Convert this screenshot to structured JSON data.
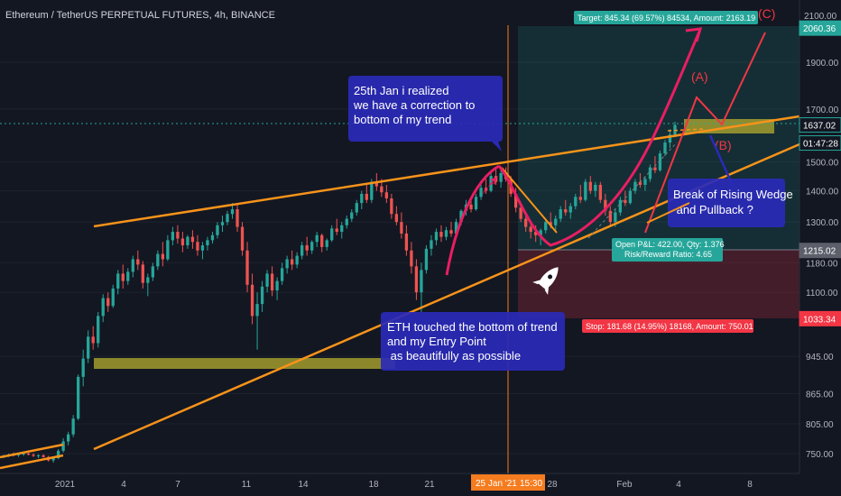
{
  "chart_data": {
    "type": "candlestick",
    "title": "Ethereum / TetherUS PERPETUAL FUTURES, 4h, BINANCE",
    "price_axis_ticks": [
      750,
      805,
      865,
      945,
      1100,
      1180,
      1300,
      1400,
      1500,
      1700,
      1900
    ],
    "date_axis_ticks": [
      "2021",
      "4",
      "7",
      "11",
      "14",
      "18",
      "21",
      "28",
      "Feb",
      "4",
      "8"
    ],
    "price_tags": [
      {
        "value": "2060.36",
        "color": "#26a69a"
      },
      {
        "value": "1637.02",
        "color": "#131722"
      },
      {
        "value": "01:47:28",
        "color": "#131722"
      },
      {
        "value": "1215.02",
        "color": "#5d606b"
      },
      {
        "value": "1033.34",
        "color": "#f23645"
      }
    ],
    "cursor_date": "25 Jan '21",
    "cursor_time": "15:30",
    "top_axis_partial": "2100.00",
    "position": {
      "entry": 1215.02,
      "target_price": 2060.36,
      "stop_price": 1033.34,
      "target_label": "Target: 845.34 (69.57%) 84534, Amount: 2163.19",
      "stop_label": "Stop: 181.68 (14.95%) 18168, Amount: 750.01",
      "pnl_line1": "Open P&L: 422.00, Qty: 1.376",
      "pnl_line2": "Risk/Reward Ratio: 4.65"
    },
    "wave_labels": {
      "a": "(A)",
      "b": "(B)",
      "c": "(C)"
    },
    "annotations": [
      {
        "lines": [
          "25th Jan i realized",
          "we have a correction to",
          "bottom of my trend"
        ]
      },
      {
        "lines": [
          "ETH touched the bottom of trend",
          "and my Entry Point",
          " as beautifully as possible"
        ]
      },
      {
        "lines": [
          "Break of Rising Wedge",
          "  and Pullback ?"
        ]
      }
    ],
    "candles": [
      [
        745,
        748,
        742,
        746
      ],
      [
        746,
        750,
        744,
        748
      ],
      [
        748,
        752,
        745,
        747
      ],
      [
        747,
        751,
        744,
        749
      ],
      [
        749,
        753,
        746,
        750
      ],
      [
        750,
        754,
        747,
        748
      ],
      [
        748,
        751,
        744,
        746
      ],
      [
        746,
        749,
        742,
        747
      ],
      [
        747,
        749,
        743,
        744
      ],
      [
        744,
        746,
        736,
        738
      ],
      [
        738,
        744,
        734,
        742
      ],
      [
        742,
        758,
        740,
        755
      ],
      [
        755,
        778,
        752,
        772
      ],
      [
        772,
        790,
        765,
        785
      ],
      [
        785,
        822,
        780,
        815
      ],
      [
        815,
        905,
        812,
        900
      ],
      [
        900,
        960,
        880,
        940
      ],
      [
        940,
        1005,
        930,
        990
      ],
      [
        990,
        1015,
        960,
        975
      ],
      [
        975,
        1050,
        965,
        1040
      ],
      [
        1040,
        1095,
        1025,
        1085
      ],
      [
        1085,
        1100,
        1050,
        1065
      ],
      [
        1065,
        1120,
        1060,
        1110
      ],
      [
        1110,
        1160,
        1095,
        1150
      ],
      [
        1150,
        1175,
        1110,
        1130
      ],
      [
        1130,
        1165,
        1120,
        1155
      ],
      [
        1155,
        1200,
        1140,
        1190
      ],
      [
        1190,
        1215,
        1160,
        1175
      ],
      [
        1175,
        1185,
        1110,
        1125
      ],
      [
        1125,
        1150,
        1090,
        1140
      ],
      [
        1140,
        1180,
        1130,
        1170
      ],
      [
        1170,
        1215,
        1160,
        1205
      ],
      [
        1205,
        1240,
        1170,
        1190
      ],
      [
        1190,
        1260,
        1185,
        1245
      ],
      [
        1245,
        1285,
        1230,
        1270
      ],
      [
        1270,
        1290,
        1235,
        1250
      ],
      [
        1250,
        1270,
        1210,
        1230
      ],
      [
        1230,
        1260,
        1220,
        1255
      ],
      [
        1255,
        1275,
        1220,
        1240
      ],
      [
        1240,
        1260,
        1200,
        1215
      ],
      [
        1215,
        1240,
        1190,
        1230
      ],
      [
        1230,
        1255,
        1215,
        1245
      ],
      [
        1245,
        1270,
        1235,
        1260
      ],
      [
        1260,
        1300,
        1250,
        1290
      ],
      [
        1290,
        1320,
        1270,
        1300
      ],
      [
        1300,
        1335,
        1290,
        1325
      ],
      [
        1325,
        1360,
        1310,
        1340
      ],
      [
        1340,
        1355,
        1270,
        1285
      ],
      [
        1285,
        1300,
        1200,
        1215
      ],
      [
        1215,
        1240,
        1100,
        1120
      ],
      [
        1120,
        1150,
        1020,
        1040
      ],
      [
        1040,
        1100,
        960,
        1070
      ],
      [
        1070,
        1130,
        1050,
        1115
      ],
      [
        1115,
        1160,
        1100,
        1150
      ],
      [
        1150,
        1170,
        1090,
        1105
      ],
      [
        1105,
        1140,
        1080,
        1130
      ],
      [
        1130,
        1180,
        1120,
        1165
      ],
      [
        1165,
        1200,
        1150,
        1190
      ],
      [
        1190,
        1215,
        1160,
        1175
      ],
      [
        1175,
        1210,
        1165,
        1200
      ],
      [
        1200,
        1240,
        1190,
        1230
      ],
      [
        1230,
        1255,
        1200,
        1215
      ],
      [
        1215,
        1245,
        1205,
        1240
      ],
      [
        1240,
        1270,
        1225,
        1260
      ],
      [
        1260,
        1265,
        1210,
        1225
      ],
      [
        1225,
        1250,
        1215,
        1245
      ],
      [
        1245,
        1290,
        1240,
        1280
      ],
      [
        1280,
        1310,
        1260,
        1270
      ],
      [
        1270,
        1300,
        1250,
        1290
      ],
      [
        1290,
        1320,
        1280,
        1310
      ],
      [
        1310,
        1340,
        1300,
        1330
      ],
      [
        1330,
        1370,
        1320,
        1360
      ],
      [
        1360,
        1400,
        1340,
        1390
      ],
      [
        1390,
        1420,
        1360,
        1370
      ],
      [
        1370,
        1440,
        1360,
        1430
      ],
      [
        1430,
        1460,
        1400,
        1415
      ],
      [
        1415,
        1440,
        1380,
        1395
      ],
      [
        1395,
        1420,
        1360,
        1375
      ],
      [
        1375,
        1390,
        1310,
        1325
      ],
      [
        1325,
        1350,
        1290,
        1300
      ],
      [
        1300,
        1330,
        1250,
        1265
      ],
      [
        1265,
        1290,
        1200,
        1215
      ],
      [
        1215,
        1240,
        1150,
        1170
      ],
      [
        1170,
        1190,
        1080,
        1100
      ],
      [
        1100,
        1180,
        1050,
        1160
      ],
      [
        1160,
        1230,
        1150,
        1220
      ],
      [
        1220,
        1260,
        1200,
        1245
      ],
      [
        1245,
        1280,
        1230,
        1270
      ],
      [
        1270,
        1290,
        1240,
        1255
      ],
      [
        1255,
        1285,
        1245,
        1275
      ],
      [
        1275,
        1300,
        1255,
        1265
      ],
      [
        1265,
        1310,
        1260,
        1300
      ],
      [
        1300,
        1340,
        1290,
        1335
      ],
      [
        1335,
        1370,
        1320,
        1355
      ],
      [
        1355,
        1370,
        1330,
        1340
      ],
      [
        1340,
        1390,
        1335,
        1380
      ],
      [
        1380,
        1420,
        1370,
        1410
      ],
      [
        1410,
        1440,
        1390,
        1400
      ],
      [
        1400,
        1460,
        1395,
        1450
      ],
      [
        1450,
        1480,
        1420,
        1430
      ],
      [
        1430,
        1470,
        1410,
        1460
      ],
      [
        1460,
        1480,
        1430,
        1440
      ],
      [
        1440,
        1450,
        1380,
        1390
      ],
      [
        1390,
        1410,
        1330,
        1345
      ],
      [
        1345,
        1360,
        1300,
        1310
      ],
      [
        1310,
        1330,
        1270,
        1285
      ],
      [
        1285,
        1300,
        1250,
        1270
      ],
      [
        1270,
        1290,
        1240,
        1260
      ],
      [
        1260,
        1280,
        1230,
        1275
      ],
      [
        1275,
        1310,
        1265,
        1300
      ],
      [
        1300,
        1330,
        1280,
        1290
      ],
      [
        1290,
        1320,
        1275,
        1310
      ],
      [
        1310,
        1350,
        1300,
        1340
      ],
      [
        1340,
        1370,
        1320,
        1330
      ],
      [
        1330,
        1360,
        1310,
        1350
      ],
      [
        1350,
        1390,
        1340,
        1380
      ],
      [
        1380,
        1420,
        1360,
        1370
      ],
      [
        1370,
        1440,
        1365,
        1430
      ],
      [
        1430,
        1450,
        1390,
        1400
      ],
      [
        1400,
        1430,
        1380,
        1420
      ],
      [
        1420,
        1430,
        1360,
        1370
      ],
      [
        1370,
        1390,
        1320,
        1335
      ],
      [
        1335,
        1350,
        1290,
        1300
      ],
      [
        1300,
        1340,
        1285,
        1330
      ],
      [
        1330,
        1380,
        1320,
        1370
      ],
      [
        1370,
        1400,
        1350,
        1360
      ],
      [
        1360,
        1410,
        1355,
        1400
      ],
      [
        1400,
        1440,
        1390,
        1430
      ],
      [
        1430,
        1460,
        1410,
        1420
      ],
      [
        1420,
        1450,
        1400,
        1440
      ],
      [
        1440,
        1490,
        1430,
        1480
      ],
      [
        1480,
        1520,
        1460,
        1470
      ],
      [
        1470,
        1540,
        1465,
        1530
      ],
      [
        1530,
        1580,
        1520,
        1570
      ],
      [
        1570,
        1620,
        1550,
        1600
      ],
      [
        1600,
        1650,
        1590,
        1637
      ]
    ]
  }
}
